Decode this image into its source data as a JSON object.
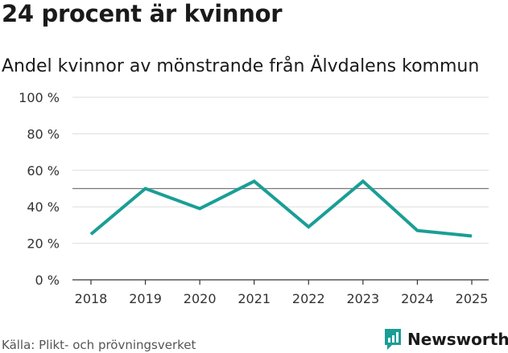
{
  "chart_data": {
    "type": "line",
    "title": "24 procent är kvinnor",
    "subtitle": "Andel kvinnor av mönstrande från Älvdalens kommun",
    "x": [
      "2018",
      "2019",
      "2020",
      "2021",
      "2022",
      "2023",
      "2024",
      "2025"
    ],
    "series": [
      {
        "name": "Andel kvinnor",
        "values": [
          25,
          50,
          39,
          54,
          29,
          54,
          27,
          24
        ]
      }
    ],
    "reference_line": 50,
    "ylim": [
      0,
      100
    ],
    "yticks": [
      0,
      20,
      40,
      60,
      80,
      100
    ],
    "ytick_labels": [
      "0 %",
      "20 %",
      "40 %",
      "60 %",
      "80 %",
      "100 %"
    ],
    "xlabel": "",
    "ylabel": "",
    "grid": true
  },
  "footer": {
    "source": "Källa: Plikt- och prövningsverket",
    "brand": "Newsworthy"
  },
  "colors": {
    "line": "#1a9e96",
    "brand": "#1a9e96",
    "grid": "#dddddd",
    "reference": "#777777"
  }
}
